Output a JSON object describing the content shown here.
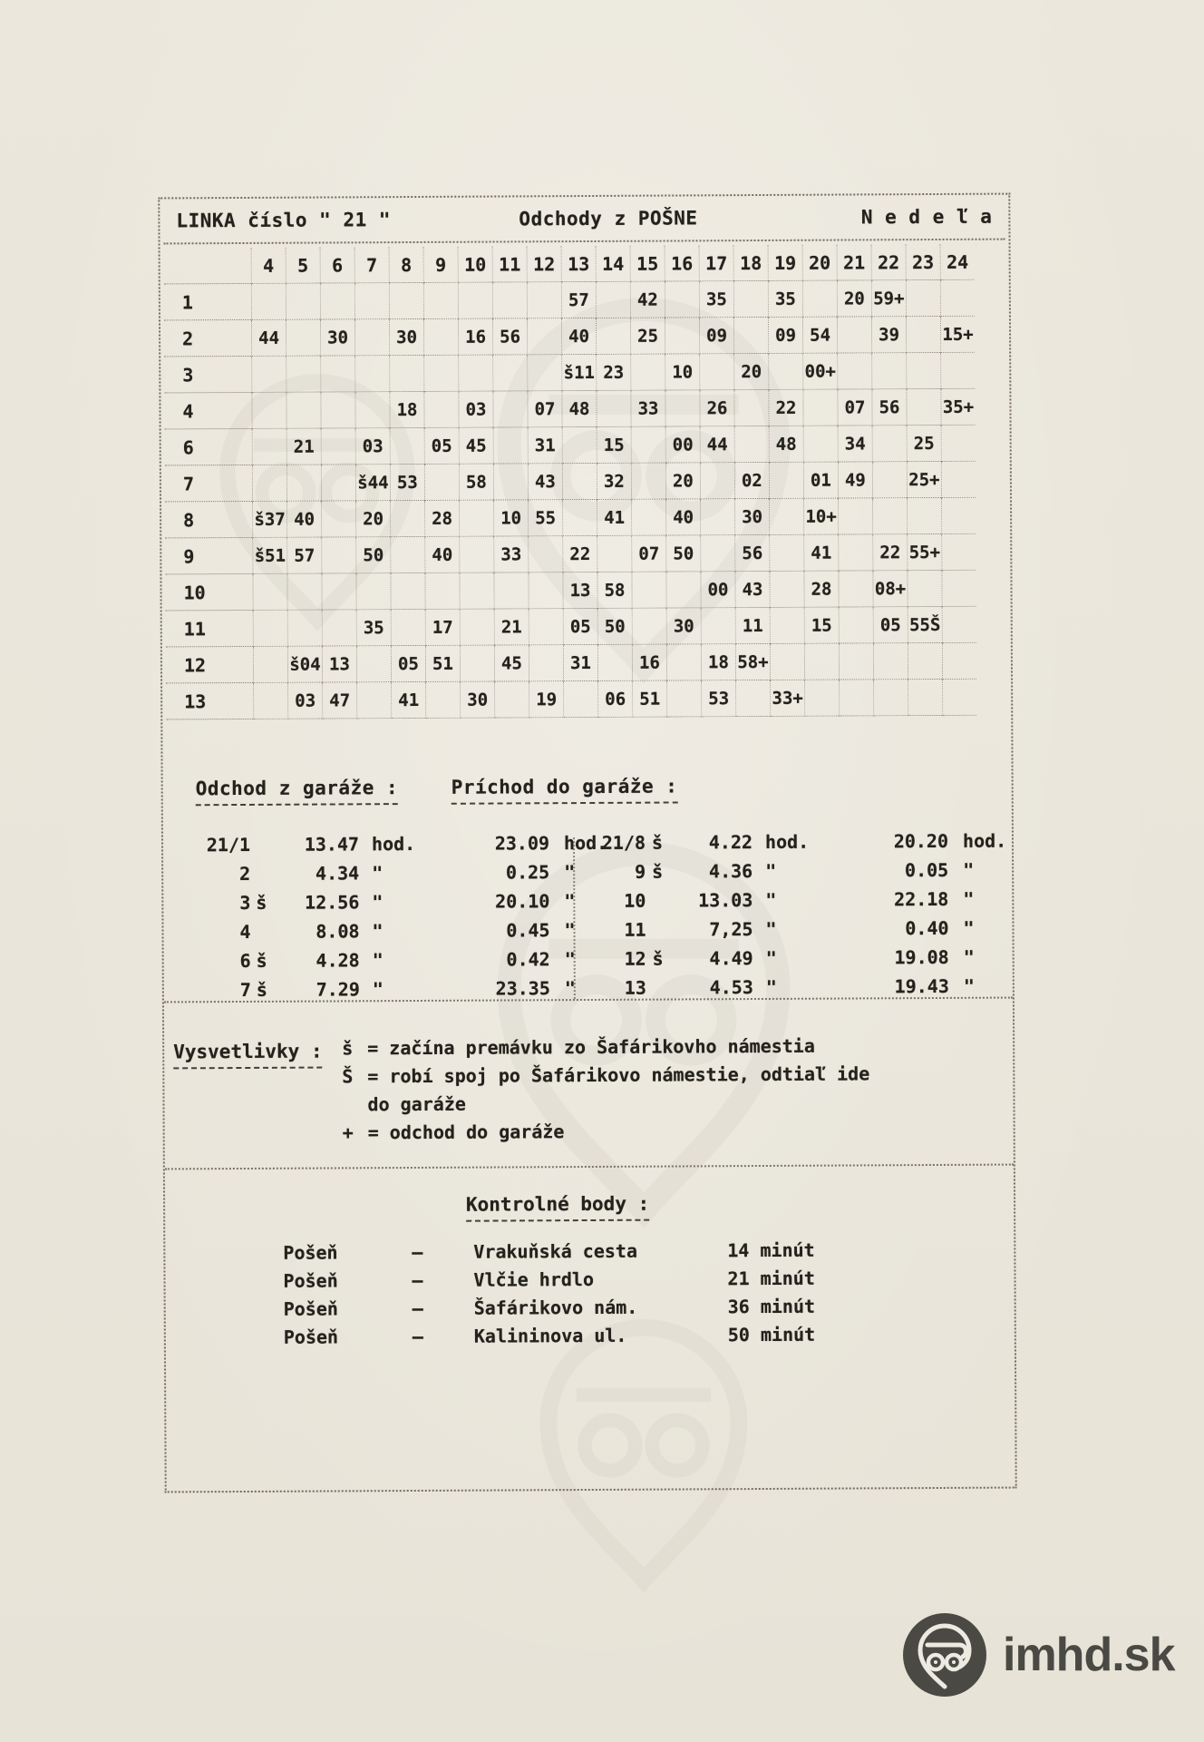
{
  "header": {
    "title_left": "LINKA číslo \" 21 \"",
    "title_mid": "Odchody z POŠNE",
    "title_right": "N e d e ľ a"
  },
  "timetable": {
    "hours": [
      "4",
      "5",
      "6",
      "7",
      "8",
      "9",
      "10",
      "11",
      "12",
      "13",
      "14",
      "15",
      "16",
      "17",
      "18",
      "19",
      "20",
      "21",
      "22",
      "23",
      "24"
    ],
    "rows": [
      {
        "label": "1",
        "cells": {
          "13": "57",
          "15": "42",
          "17": "35",
          "19": "35",
          "21": "20",
          "22": "59+"
        }
      },
      {
        "label": "2",
        "cells": {
          "4": "44",
          "6": "30",
          "8": "30",
          "10": "16",
          "11": "56",
          "13": "40",
          "15": "25",
          "17": "09",
          "19": "09",
          "20": "54",
          "22": "39",
          "24": "15+"
        }
      },
      {
        "label": "3",
        "cells": {
          "13": "š11",
          "14": "23",
          "16": "10",
          "18": "20",
          "20": "00+"
        }
      },
      {
        "label": "4",
        "cells": {
          "8": "18",
          "10": "03",
          "12": "07",
          "13": "48",
          "15": "33",
          "17": "26",
          "19": "22",
          "21": "07",
          "22": "56",
          "24": "35+"
        }
      },
      {
        "label": "6",
        "cells": {
          "5": "21",
          "7": "03",
          "9": "05",
          "10": "45",
          "12": "31",
          "14": "15",
          "16": "00",
          "17": "44",
          "19": "48",
          "21": "34",
          "23": "25"
        }
      },
      {
        "label": "7",
        "cells": {
          "7": "š44",
          "8": "53",
          "10": "58",
          "12": "43",
          "14": "32",
          "16": "20",
          "18": "02",
          "20": "01",
          "21": "49",
          "23": "25+"
        }
      },
      {
        "label": "8",
        "cells": {
          "4": "š37",
          "5": "40",
          "7": "20",
          "9": "28",
          "11": "10",
          "12": "55",
          "14": "41",
          "16": "40",
          "18": "30",
          "20": "10+"
        }
      },
      {
        "label": "9",
        "cells": {
          "4": "š51",
          "5": "57",
          "7": "50",
          "9": "40",
          "11": "33",
          "13": "22",
          "15": "07",
          "16": "50",
          "18": "56",
          "20": "41",
          "22": "22",
          "23": "55+"
        }
      },
      {
        "label": "10",
        "cells": {
          "13": "13",
          "14": "58",
          "17": "00",
          "18": "43",
          "20": "28",
          "22": "08+"
        }
      },
      {
        "label": "11",
        "cells": {
          "7": "35",
          "9": "17",
          "11": "21",
          "13": "05",
          "14": "50",
          "16": "30",
          "18": "11",
          "20": "15",
          "22": "05",
          "23": "55Š"
        }
      },
      {
        "label": "12",
        "cells": {
          "5": "š04",
          "6": "13",
          "8": "05",
          "9": "51",
          "11": "45",
          "13": "31",
          "15": "16",
          "17": "18",
          "18": "58+"
        }
      },
      {
        "label": "13",
        "cells": {
          "5": "03",
          "6": "47",
          "8": "41",
          "10": "30",
          "12": "19",
          "14": "06",
          "15": "51",
          "17": "53",
          "19": "33+"
        }
      }
    ]
  },
  "garage": {
    "left_heading": "Odchod z garáže :",
    "right_heading": "Príchod do garáže :",
    "left_rows": [
      {
        "kurz": "21/1",
        "s": "",
        "dep": "13.47",
        "dep_unit": "hod.",
        "arr": "23.09",
        "arr_unit": "hod."
      },
      {
        "kurz": "2",
        "s": "",
        "dep": "4.34",
        "dep_unit": "\"",
        "arr": "0.25",
        "arr_unit": "\""
      },
      {
        "kurz": "3",
        "s": "š",
        "dep": "12.56",
        "dep_unit": "\"",
        "arr": "20.10",
        "arr_unit": "\""
      },
      {
        "kurz": "4",
        "s": "",
        "dep": "8.08",
        "dep_unit": "\"",
        "arr": "0.45",
        "arr_unit": "\""
      },
      {
        "kurz": "6",
        "s": "š",
        "dep": "4.28",
        "dep_unit": "\"",
        "arr": "0.42",
        "arr_unit": "\""
      },
      {
        "kurz": "7",
        "s": "š",
        "dep": "7.29",
        "dep_unit": "\"",
        "arr": "23.35",
        "arr_unit": "\""
      }
    ],
    "right_rows": [
      {
        "kurz": "21/8",
        "s": "š",
        "dep": "4.22",
        "dep_unit": "hod.",
        "arr": "20.20",
        "arr_unit": "hod."
      },
      {
        "kurz": "9",
        "s": "š",
        "dep": "4.36",
        "dep_unit": "\"",
        "arr": "0.05",
        "arr_unit": "\""
      },
      {
        "kurz": "10",
        "s": "",
        "dep": "13.03",
        "dep_unit": "\"",
        "arr": "22.18",
        "arr_unit": "\""
      },
      {
        "kurz": "11",
        "s": "",
        "dep": "7,25",
        "dep_unit": "\"",
        "arr": "0.40",
        "arr_unit": "\""
      },
      {
        "kurz": "12",
        "s": "š",
        "dep": "4.49",
        "dep_unit": "\"",
        "arr": "19.08",
        "arr_unit": "\""
      },
      {
        "kurz": "13",
        "s": "",
        "dep": "4.53",
        "dep_unit": "\"",
        "arr": "19.43",
        "arr_unit": "\""
      }
    ]
  },
  "legend": {
    "heading": "Vysvetlivky :",
    "items": [
      {
        "sym": "š",
        "text": "= začína premávku zo Šafárikovho námestia"
      },
      {
        "sym": "Š",
        "text": "= robí spoj po Šafárikovo námestie, odtiaľ ide do garáže"
      },
      {
        "sym": "+",
        "text": "= odchod do garáže"
      }
    ]
  },
  "control_points": {
    "heading": "Kontrolné  body  :",
    "rows": [
      {
        "from": "Pošeň",
        "dash": "–",
        "to": "Vrakuňská cesta",
        "time": "14 minút"
      },
      {
        "from": "Pošeň",
        "dash": "–",
        "to": "Vlčie hrdlo",
        "time": "21 minút"
      },
      {
        "from": "Pošeň",
        "dash": "–",
        "to": "Šafárikovo nám.",
        "time": "36 minút"
      },
      {
        "from": "Pošeň",
        "dash": "–",
        "to": "Kalininova ul.",
        "time": "50 minút"
      }
    ]
  },
  "footer": {
    "logo_text": "imhd.sk"
  },
  "colors": {
    "paper": "#eae6db",
    "ink": "#24221c",
    "logo": "#4a4944"
  }
}
